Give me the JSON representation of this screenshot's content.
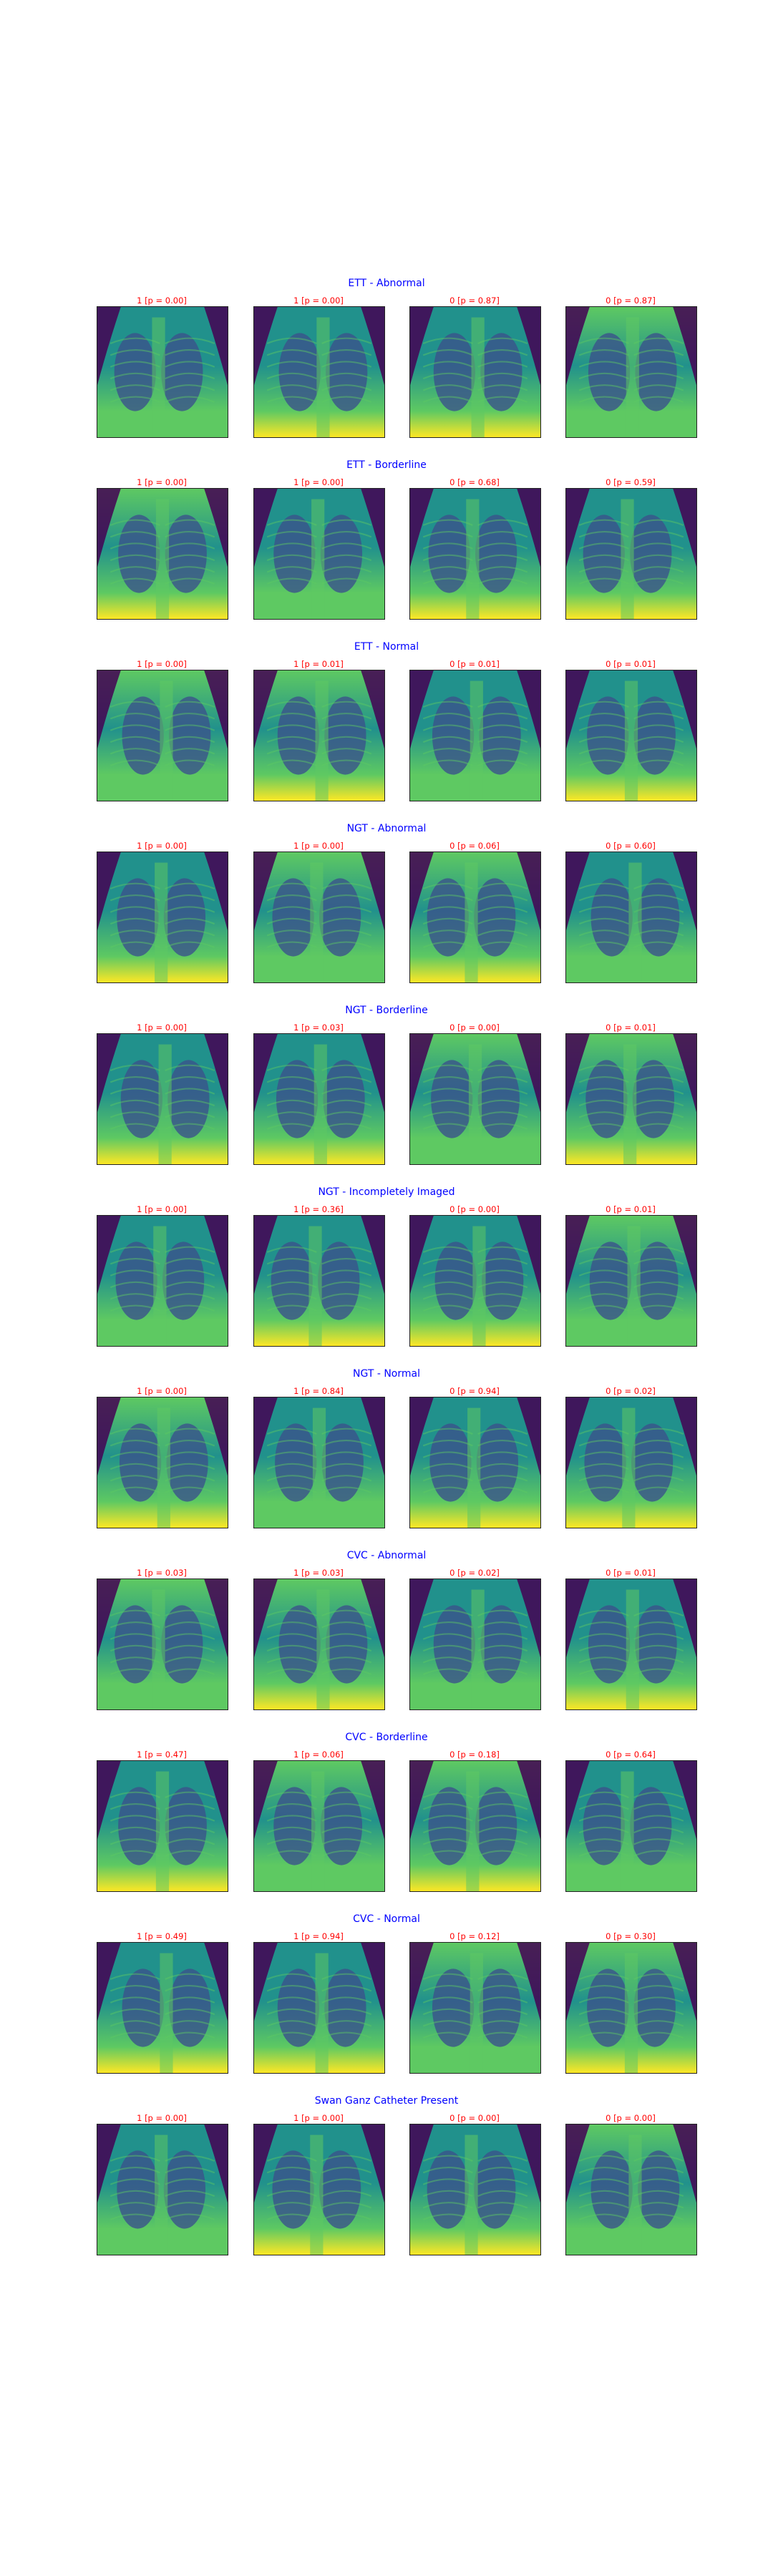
{
  "colormap": [
    "#440154",
    "#3b528b",
    "#21918c",
    "#5ec962",
    "#fde725"
  ],
  "title_color": "#0000ff",
  "caption_color": "#ff0000",
  "rows": [
    {
      "title": "ETT - Abnormal",
      "captions": [
        "1 [p = 0.00]",
        "1 [p = 0.00]",
        "0 [p = 0.87]",
        "0 [p = 0.87]"
      ]
    },
    {
      "title": "ETT - Borderline",
      "captions": [
        "1 [p = 0.00]",
        "1 [p = 0.00]",
        "0 [p = 0.68]",
        "0 [p = 0.59]"
      ]
    },
    {
      "title": "ETT - Normal",
      "captions": [
        "1 [p = 0.00]",
        "1 [p = 0.01]",
        "0 [p = 0.01]",
        "0 [p = 0.01]"
      ]
    },
    {
      "title": "NGT - Abnormal",
      "captions": [
        "1 [p = 0.00]",
        "1 [p = 0.00]",
        "0 [p = 0.06]",
        "0 [p = 0.60]"
      ]
    },
    {
      "title": "NGT - Borderline",
      "captions": [
        "1 [p = 0.00]",
        "1 [p = 0.03]",
        "0 [p = 0.00]",
        "0 [p = 0.01]"
      ]
    },
    {
      "title": "NGT - Incompletely Imaged",
      "captions": [
        "1 [p = 0.00]",
        "1 [p = 0.36]",
        "0 [p = 0.00]",
        "0 [p = 0.01]"
      ]
    },
    {
      "title": "NGT - Normal",
      "captions": [
        "1 [p = 0.00]",
        "1 [p = 0.84]",
        "0 [p = 0.94]",
        "0 [p = 0.02]"
      ]
    },
    {
      "title": "CVC - Abnormal",
      "captions": [
        "1 [p = 0.03]",
        "1 [p = 0.03]",
        "0 [p = 0.02]",
        "0 [p = 0.01]"
      ]
    },
    {
      "title": "CVC - Borderline",
      "captions": [
        "1 [p = 0.47]",
        "1 [p = 0.06]",
        "0 [p = 0.18]",
        "0 [p = 0.64]"
      ]
    },
    {
      "title": "CVC - Normal",
      "captions": [
        "1 [p = 0.49]",
        "1 [p = 0.94]",
        "0 [p = 0.12]",
        "0 [p = 0.30]"
      ]
    },
    {
      "title": "Swan Ganz Catheter Present",
      "captions": [
        "1 [p = 0.00]",
        "1 [p = 0.00]",
        "0 [p = 0.00]",
        "0 [p = 0.00]"
      ]
    }
  ]
}
